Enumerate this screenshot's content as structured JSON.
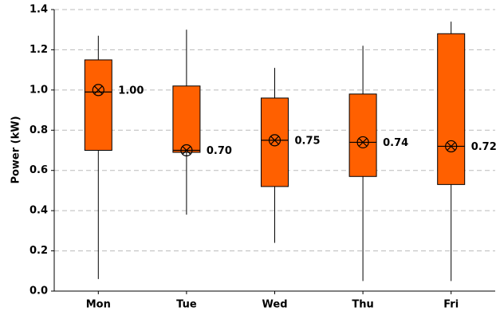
{
  "chart_data": {
    "type": "box",
    "y_label": "Power (kW)",
    "categories": [
      "Mon",
      "Tue",
      "Wed",
      "Thu",
      "Fri"
    ],
    "min": [
      0.06,
      0.38,
      0.24,
      0.05,
      0.05
    ],
    "q1": [
      0.7,
      0.69,
      0.52,
      0.57,
      0.53
    ],
    "median": [
      0.99,
      0.7,
      0.75,
      0.74,
      0.72
    ],
    "q3": [
      1.15,
      1.02,
      0.96,
      0.98,
      1.28
    ],
    "max": [
      1.27,
      1.3,
      1.11,
      1.22,
      1.34
    ],
    "mean": [
      1.0,
      0.7,
      0.75,
      0.74,
      0.72
    ],
    "value_labels": [
      "1.00",
      "0.70",
      "0.75",
      "0.74",
      "0.72"
    ],
    "color": "#ff6000",
    "ylim": [
      0,
      1.4
    ],
    "yticks": [
      {
        "value": 0,
        "label": "0.0"
      },
      0.2,
      0.4,
      0.6,
      0.8,
      {
        "value": 1,
        "label": "1.0"
      },
      1.2,
      1.4
    ],
    "grid": true
  }
}
